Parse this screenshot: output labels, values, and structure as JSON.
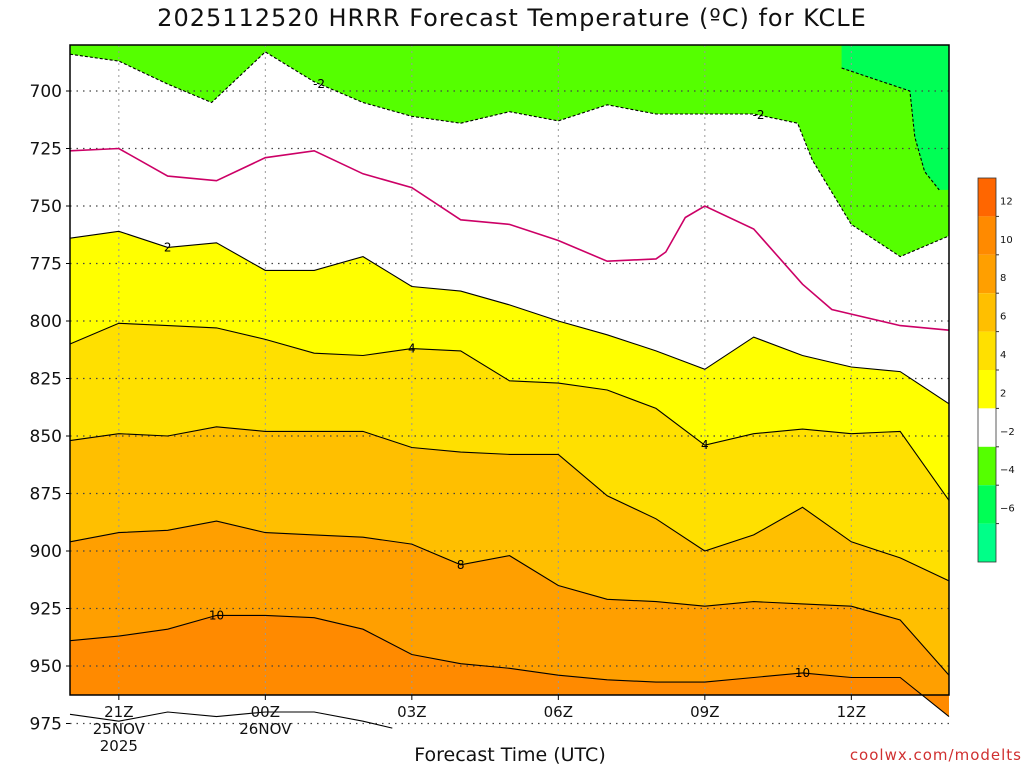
{
  "chart_data": {
    "type": "heatmap",
    "title": "2025112520 HRRR Forecast Temperature (ºC) for KCLE",
    "xlabel": "Forecast Time (UTC)",
    "credit": "coolwx.com/modelts",
    "y_axis": {
      "quantity": "pressure (hPa)",
      "range": [
        690,
        984
      ],
      "ticks": [
        700,
        725,
        750,
        775,
        800,
        825,
        850,
        875,
        900,
        925,
        950,
        975
      ]
    },
    "x_axis": {
      "ticks": [
        {
          "hour": 21,
          "lines": [
            "21Z",
            "25NOV",
            "2025"
          ]
        },
        {
          "hour": 24,
          "lines": [
            "00Z",
            "26NOV"
          ]
        },
        {
          "hour": 27,
          "lines": [
            "03Z"
          ]
        },
        {
          "hour": 30,
          "lines": [
            "06Z"
          ]
        },
        {
          "hour": 33,
          "lines": [
            "09Z"
          ]
        },
        {
          "hour": 36,
          "lines": [
            "12Z"
          ]
        }
      ],
      "hour_range": [
        20,
        38
      ]
    },
    "grid": true,
    "ground_level_hPa": 978,
    "colors": {
      "ground": "#a0522d",
      "background": "#ffffff",
      "grid": "#444444"
    },
    "bands": [
      {
        "min": -4,
        "max": -2,
        "color": "#55ff00"
      },
      {
        "min": -6,
        "max": -4,
        "color": "#00ff55"
      },
      {
        "min": 2,
        "max": 4,
        "color": "#ffff00"
      },
      {
        "min": 4,
        "max": 6,
        "color": "#ffe000"
      },
      {
        "min": 6,
        "max": 8,
        "color": "#ffbf00"
      },
      {
        "min": 8,
        "max": 10,
        "color": "#ff9f00"
      },
      {
        "min": 10,
        "max": 12,
        "color": "#ff8a00"
      }
    ],
    "contours": [
      {
        "level": -2,
        "color": "#000000",
        "dashed": true,
        "label": "-2",
        "points": [
          [
            20,
            684
          ],
          [
            21,
            687
          ],
          [
            22,
            697
          ],
          [
            22.9,
            705
          ],
          [
            24,
            683
          ],
          [
            25,
            696
          ],
          [
            26,
            705
          ],
          [
            27,
            711
          ],
          [
            28,
            714
          ],
          [
            29,
            709
          ],
          [
            30,
            713
          ],
          [
            31,
            706
          ],
          [
            32,
            710
          ],
          [
            33,
            710
          ],
          [
            34,
            710
          ],
          [
            34.9,
            714
          ],
          [
            35.2,
            730
          ],
          [
            36,
            758
          ],
          [
            37,
            772
          ],
          [
            38,
            763
          ]
        ]
      },
      {
        "level": -4,
        "color": "#000000",
        "dashed": true,
        "label": "",
        "points": [
          [
            35.8,
            690
          ],
          [
            37.2,
            700
          ],
          [
            37.3,
            720
          ],
          [
            37.5,
            735
          ],
          [
            37.8,
            743
          ]
        ]
      },
      {
        "level": 0,
        "color": "#cc0066",
        "dashed": false,
        "label": "",
        "points": [
          [
            20,
            726
          ],
          [
            21,
            725
          ],
          [
            22,
            737
          ],
          [
            23,
            739
          ],
          [
            24,
            729
          ],
          [
            25,
            726
          ],
          [
            26,
            736
          ],
          [
            27,
            742
          ],
          [
            28,
            756
          ],
          [
            29,
            758
          ],
          [
            30,
            765
          ],
          [
            31,
            774
          ],
          [
            32,
            773
          ],
          [
            32.2,
            770
          ],
          [
            32.6,
            755
          ],
          [
            33,
            750
          ],
          [
            34,
            760
          ],
          [
            35,
            784
          ],
          [
            35.6,
            795
          ],
          [
            36,
            797
          ],
          [
            37,
            802
          ],
          [
            38,
            804
          ]
        ]
      },
      {
        "level": 2,
        "color": "#000000",
        "dashed": false,
        "label": "2",
        "points": [
          [
            20,
            764
          ],
          [
            21,
            761
          ],
          [
            22,
            768
          ],
          [
            23,
            766
          ],
          [
            24,
            778
          ],
          [
            25,
            778
          ],
          [
            26,
            772
          ],
          [
            27,
            785
          ],
          [
            28,
            787
          ],
          [
            29,
            793
          ],
          [
            30,
            800
          ],
          [
            31,
            806
          ],
          [
            32,
            813
          ],
          [
            33,
            821
          ],
          [
            34,
            807
          ],
          [
            35,
            815
          ],
          [
            36,
            820
          ],
          [
            37,
            822
          ],
          [
            38,
            836
          ]
        ]
      },
      {
        "level": 4,
        "color": "#000000",
        "dashed": false,
        "label": "4",
        "points": [
          [
            20,
            810
          ],
          [
            21,
            801
          ],
          [
            22,
            802
          ],
          [
            23,
            803
          ],
          [
            24,
            808
          ],
          [
            25,
            814
          ],
          [
            26,
            815
          ],
          [
            27,
            812
          ],
          [
            28,
            813
          ],
          [
            29,
            826
          ],
          [
            30,
            827
          ],
          [
            31,
            830
          ],
          [
            32,
            838
          ],
          [
            33,
            854
          ],
          [
            34,
            849
          ],
          [
            35,
            847
          ],
          [
            36,
            849
          ],
          [
            37,
            848
          ],
          [
            38,
            878
          ]
        ]
      },
      {
        "level": 6,
        "color": "#000000",
        "dashed": false,
        "label": "",
        "points": [
          [
            20,
            852
          ],
          [
            21,
            849
          ],
          [
            22,
            850
          ],
          [
            23,
            846
          ],
          [
            24,
            848
          ],
          [
            25,
            848
          ],
          [
            26,
            848
          ],
          [
            27,
            855
          ],
          [
            28,
            857
          ],
          [
            29,
            858
          ],
          [
            30,
            858
          ],
          [
            31,
            876
          ],
          [
            32,
            886
          ],
          [
            33,
            900
          ],
          [
            34,
            893
          ],
          [
            35,
            881
          ],
          [
            36,
            896
          ],
          [
            37,
            903
          ],
          [
            38,
            913
          ]
        ]
      },
      {
        "level": 8,
        "color": "#000000",
        "dashed": false,
        "label": "8",
        "points": [
          [
            20,
            896
          ],
          [
            21,
            892
          ],
          [
            22,
            891
          ],
          [
            23,
            887
          ],
          [
            24,
            892
          ],
          [
            25,
            893
          ],
          [
            26,
            894
          ],
          [
            27,
            897
          ],
          [
            28,
            906
          ],
          [
            29,
            902
          ],
          [
            30,
            915
          ],
          [
            31,
            921
          ],
          [
            32,
            922
          ],
          [
            33,
            924
          ],
          [
            34,
            922
          ],
          [
            35,
            923
          ],
          [
            36,
            924
          ],
          [
            37,
            930
          ],
          [
            38,
            954
          ]
        ]
      },
      {
        "level": 10,
        "color": "#000000",
        "dashed": false,
        "label": "10",
        "points": [
          [
            20,
            939
          ],
          [
            21,
            937
          ],
          [
            22,
            934
          ],
          [
            23,
            928
          ],
          [
            24,
            928
          ],
          [
            25,
            929
          ],
          [
            26,
            934
          ],
          [
            27,
            945
          ],
          [
            28,
            949
          ],
          [
            29,
            951
          ],
          [
            30,
            954
          ],
          [
            31,
            956
          ],
          [
            32,
            957
          ],
          [
            33,
            957
          ],
          [
            34,
            955
          ],
          [
            35,
            953
          ],
          [
            36,
            955
          ],
          [
            37,
            955
          ],
          [
            38,
            972
          ]
        ]
      },
      {
        "level": 12,
        "color": "#000000",
        "dashed": false,
        "label": "",
        "points": [
          [
            20,
            971
          ],
          [
            21,
            974
          ],
          [
            22,
            970
          ],
          [
            23,
            972
          ],
          [
            24,
            970
          ],
          [
            25,
            970
          ],
          [
            26,
            974
          ],
          [
            26.6,
            977
          ]
        ]
      }
    ],
    "colorbar": {
      "labels": [
        "12",
        "10",
        "8",
        "6",
        "4",
        "2",
        "−2",
        "−4",
        "−6"
      ],
      "swatches": [
        "#ff6600",
        "#ff8a00",
        "#ff9f00",
        "#ffbf00",
        "#ffe000",
        "#ffff00",
        "#ffffff",
        "#55ff00",
        "#00ff55",
        "#00ff88"
      ]
    }
  }
}
